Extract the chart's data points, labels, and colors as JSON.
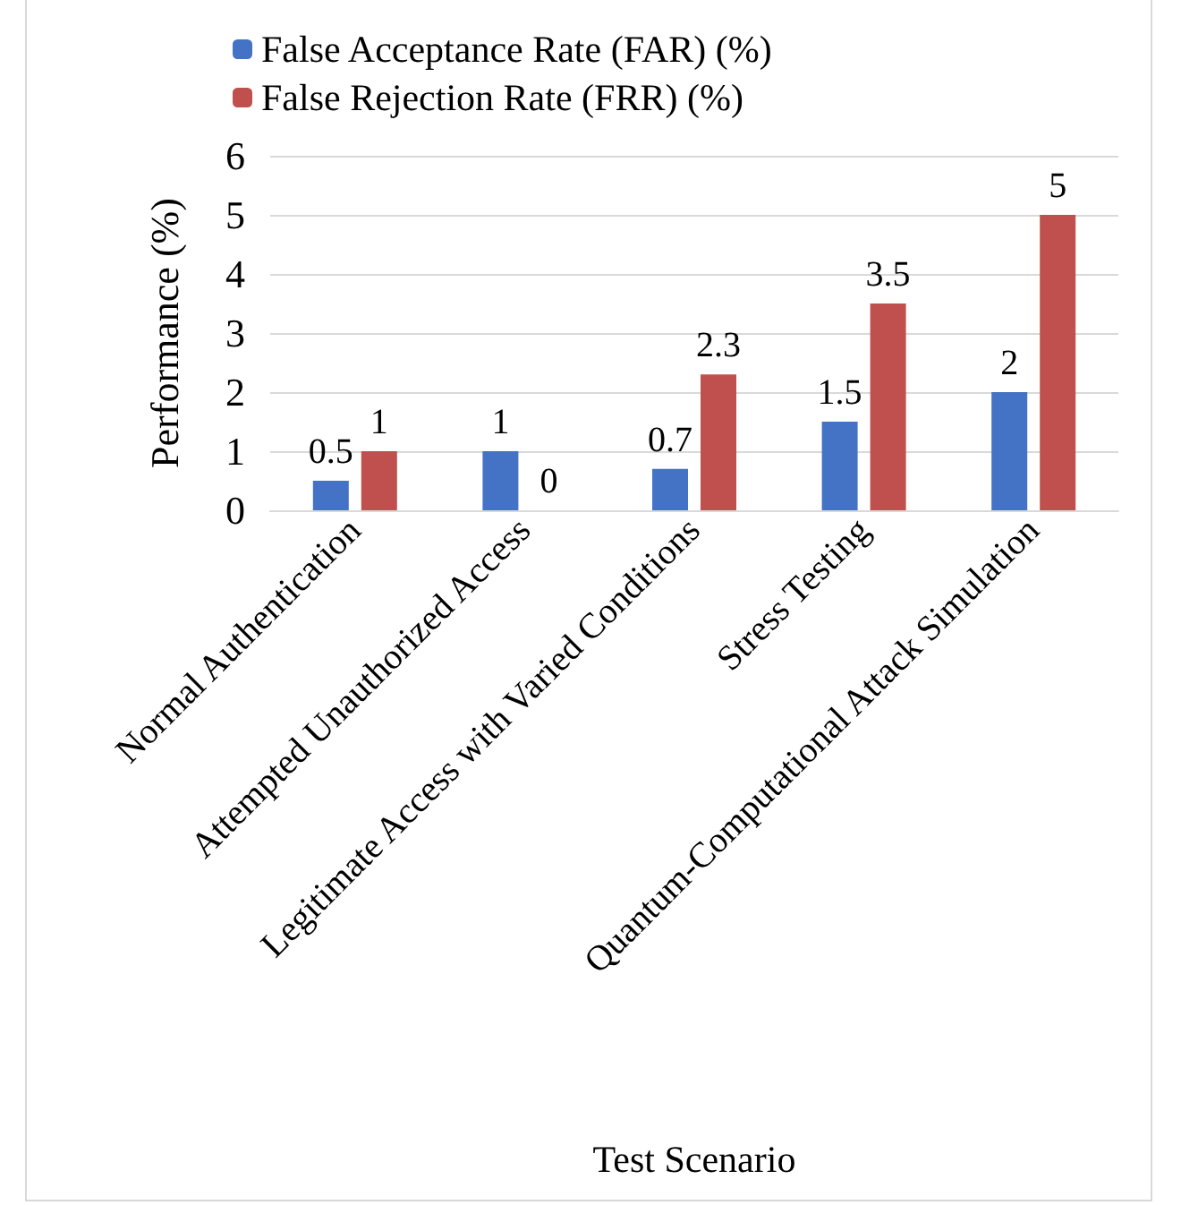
{
  "chart_data": {
    "type": "bar",
    "xlabel": "Test Scenario",
    "ylabel": "Performance (%)",
    "categories": [
      "Normal Authentication",
      "Attempted Unauthorized Access",
      "Legitimate Access with Varied Conditions",
      "Stress Testing",
      "Quantum-Computational Attack Simulation"
    ],
    "series": [
      {
        "name": "False Acceptance Rate (FAR) (%)",
        "color": "#4472c4",
        "values": [
          0.5,
          1,
          0.7,
          1.5,
          2
        ]
      },
      {
        "name": "False Rejection Rate (FRR) (%)",
        "color": "#c0504d",
        "values": [
          1,
          0,
          2.3,
          3.5,
          5
        ]
      }
    ],
    "ylim": [
      0,
      6
    ],
    "yticks": [
      0,
      1,
      2,
      3,
      4,
      5,
      6
    ],
    "grid": "y",
    "legend": "top left",
    "data_labels": true
  }
}
